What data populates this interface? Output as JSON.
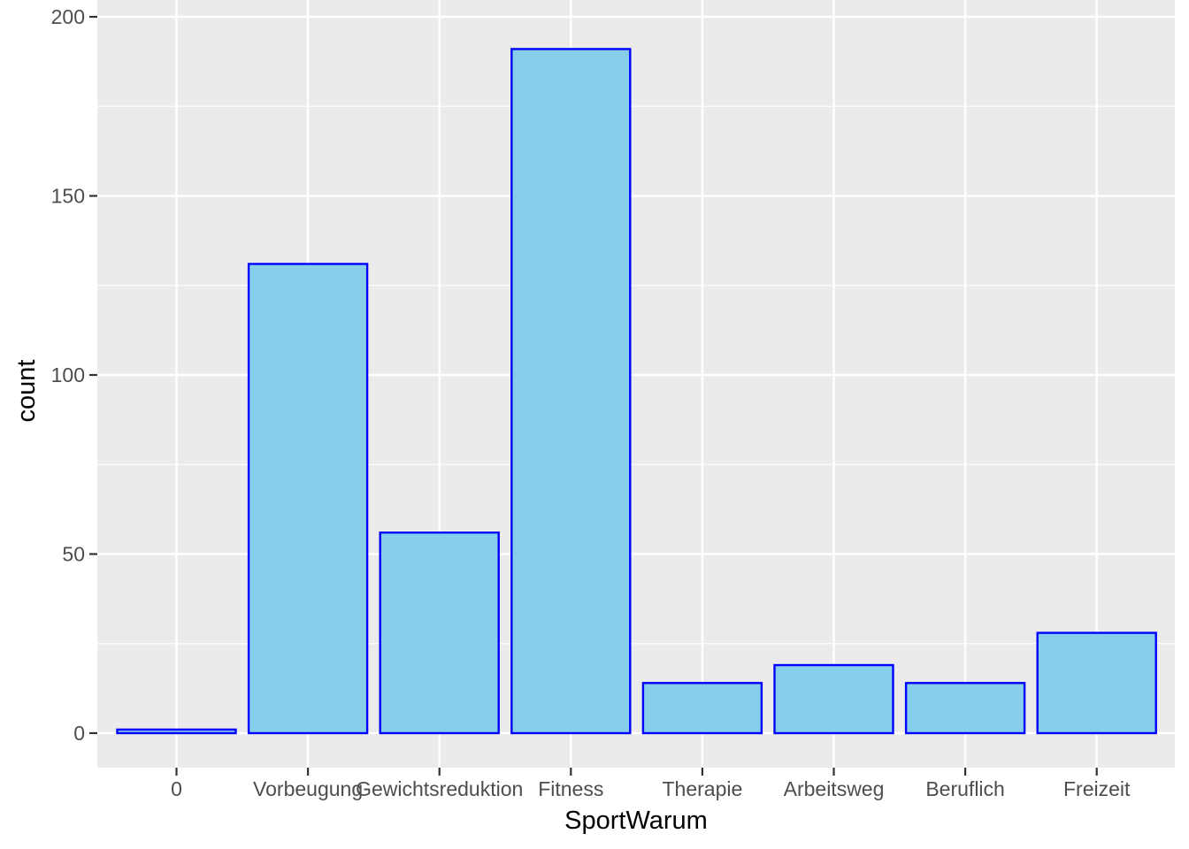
{
  "chart_data": {
    "type": "bar",
    "categories": [
      "0",
      "Vorbeugung",
      "Gewichtsreduktion",
      "Fitness",
      "Therapie",
      "Arbeitsweg",
      "Beruflich",
      "Freizeit"
    ],
    "values": [
      1,
      131,
      56,
      191,
      14,
      19,
      14,
      28
    ],
    "xlabel": "SportWarum",
    "ylabel": "count",
    "ylim": [
      0,
      200
    ],
    "yticks": [
      0,
      50,
      100,
      150,
      200
    ],
    "grid": true,
    "colors": {
      "bar_fill": "#87CEEB",
      "bar_outline": "#0000FF",
      "panel_background": "#EBEBEB",
      "grid_line": "#FFFFFF",
      "tick_text": "#4D4D4D"
    }
  }
}
